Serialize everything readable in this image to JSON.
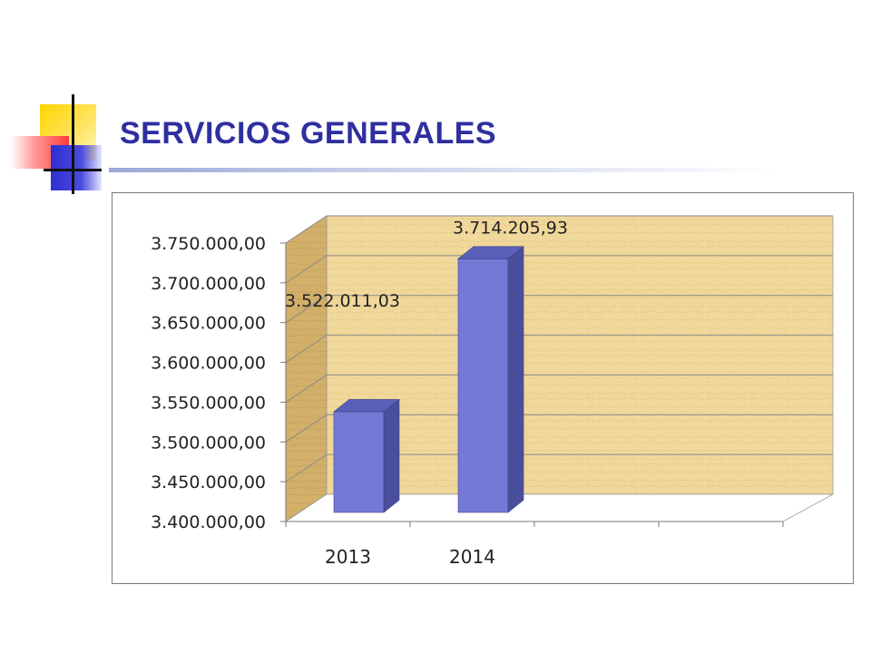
{
  "slide": {
    "title": "SERVICIOS GENERALES"
  },
  "colors": {
    "title": "#2f2fa0",
    "bar_front": "#7579d6",
    "bar_side": "#4a4f9c",
    "bar_top": "#5a5fb8",
    "wall": "#f0d79a",
    "wall_side": "#cfae68",
    "grid": "#8a8a8a"
  },
  "chart_data": {
    "type": "bar",
    "categories": [
      "2013",
      "2014"
    ],
    "values": [
      3522011.03,
      3714205.93
    ],
    "data_labels": [
      "3.522.011,03",
      "3.714.205,93"
    ],
    "ylim": [
      3400000,
      3750000
    ],
    "y_ticks": [
      "3.400.000,00",
      "3.450.000,00",
      "3.500.000,00",
      "3.550.000,00",
      "3.600.000,00",
      "3.650.000,00",
      "3.700.000,00",
      "3.750.000,00"
    ],
    "grid": true,
    "legend": "none",
    "style": "3d-column"
  }
}
